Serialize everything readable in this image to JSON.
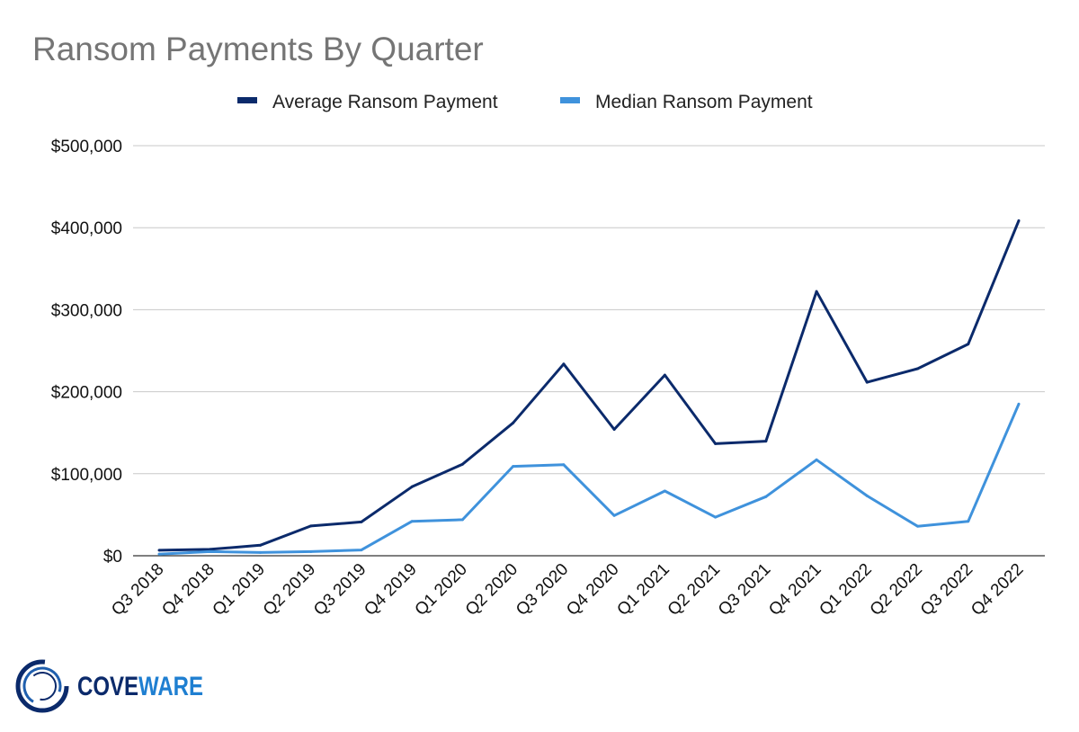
{
  "chart_data": {
    "type": "line",
    "title": "Ransom Payments By Quarter",
    "xlabel": "",
    "ylabel": "",
    "ylim": [
      0,
      500000
    ],
    "yticks": [
      0,
      100000,
      200000,
      300000,
      400000,
      500000
    ],
    "ytick_labels": [
      "$0",
      "$100,000",
      "$200,000",
      "$300,000",
      "$400,000",
      "$500,000"
    ],
    "grid": true,
    "legend_position": "top-center",
    "categories": [
      "Q3 2018",
      "Q4 2018",
      "Q1 2019",
      "Q2 2019",
      "Q3 2019",
      "Q4 2019",
      "Q1 2020",
      "Q2 2020",
      "Q3 2020",
      "Q4 2020",
      "Q1 2021",
      "Q2 2021",
      "Q3 2021",
      "Q4 2021",
      "Q1 2022",
      "Q2 2022",
      "Q3 2022",
      "Q4 2022"
    ],
    "series": [
      {
        "name": "Average Ransom Payment",
        "color": "#0b2a6b",
        "values": [
          6700,
          7800,
          12800,
          36300,
          41200,
          84100,
          111600,
          162000,
          233800,
          154100,
          220300,
          136600,
          139700,
          322200,
          211500,
          228100,
          258100,
          408600
        ]
      },
      {
        "name": "Median Ransom Payment",
        "color": "#3f92dc",
        "values": [
          2000,
          5000,
          4000,
          5000,
          7000,
          42000,
          44000,
          109000,
          111000,
          49000,
          79000,
          47000,
          72000,
          117000,
          73000,
          36000,
          42000,
          185000
        ]
      }
    ]
  },
  "logo": {
    "text_dark": "COVE",
    "text_light": "WARE"
  }
}
